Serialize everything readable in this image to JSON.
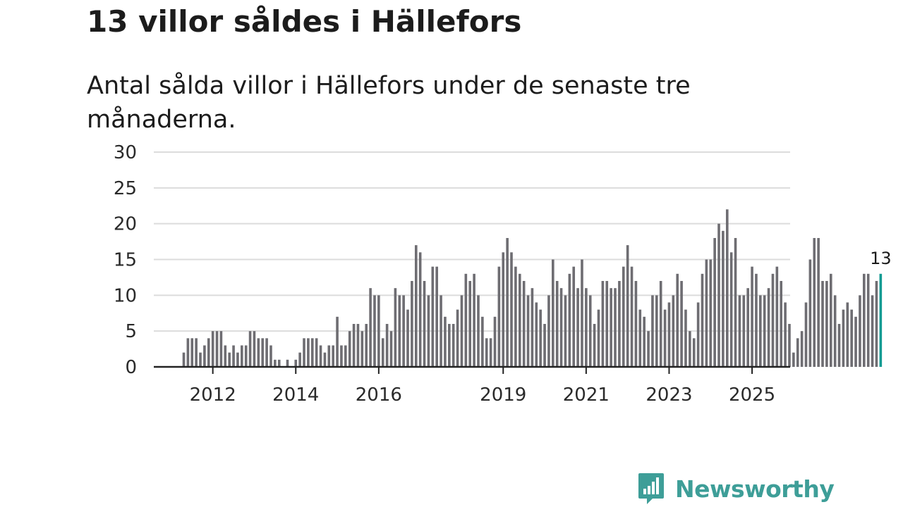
{
  "title": "13 villor såldes i Hällefors",
  "subtitle": "Antal sålda villor i Hällefors under de senaste tre månaderna.",
  "logo": {
    "text": "Newsworthy",
    "icon": "bar-chart-speech-bubble-icon"
  },
  "colors": {
    "bar": "#6e6d72",
    "highlight": "#149b93",
    "grid": "#dcdcdc",
    "axis": "#222222",
    "brand": "#3e9e98"
  },
  "chart_data": {
    "type": "bar",
    "title": "13 villor såldes i Hällefors",
    "xlabel": "",
    "ylabel": "",
    "ylim": [
      0,
      30
    ],
    "yticks": [
      0,
      5,
      10,
      15,
      20,
      25,
      30
    ],
    "xtick_labels": [
      "2012",
      "2014",
      "2016",
      "2019",
      "2021",
      "2023",
      "2025"
    ],
    "xtick_indices": [
      7,
      27,
      47,
      77,
      97,
      117,
      137
    ],
    "highlight_label": "13",
    "values": [
      2,
      4,
      4,
      4,
      2,
      3,
      4,
      5,
      5,
      5,
      3,
      2,
      3,
      2,
      3,
      3,
      5,
      5,
      4,
      4,
      4,
      3,
      1,
      1,
      0,
      1,
      0,
      1,
      2,
      4,
      4,
      4,
      4,
      3,
      2,
      3,
      3,
      7,
      3,
      3,
      5,
      6,
      6,
      5,
      6,
      11,
      10,
      10,
      4,
      6,
      5,
      11,
      10,
      10,
      8,
      12,
      17,
      16,
      12,
      10,
      14,
      14,
      10,
      7,
      6,
      6,
      8,
      10,
      13,
      12,
      13,
      10,
      7,
      4,
      4,
      7,
      14,
      16,
      18,
      16,
      14,
      13,
      12,
      10,
      11,
      9,
      8,
      6,
      10,
      15,
      12,
      11,
      10,
      13,
      14,
      11,
      15,
      11,
      10,
      6,
      8,
      12,
      12,
      11,
      11,
      12,
      14,
      17,
      14,
      12,
      8,
      7,
      5,
      10,
      10,
      12,
      8,
      9,
      10,
      13,
      12,
      8,
      5,
      4,
      9,
      13,
      15,
      15,
      18,
      20,
      19,
      22,
      16,
      18,
      10,
      10,
      11,
      14,
      13,
      10,
      10,
      11,
      13,
      14,
      12,
      9,
      6,
      2,
      4,
      5,
      9,
      15,
      18,
      18,
      12,
      12,
      13,
      10,
      6,
      8,
      9,
      8,
      7,
      10,
      13,
      13,
      10,
      12,
      13
    ]
  }
}
